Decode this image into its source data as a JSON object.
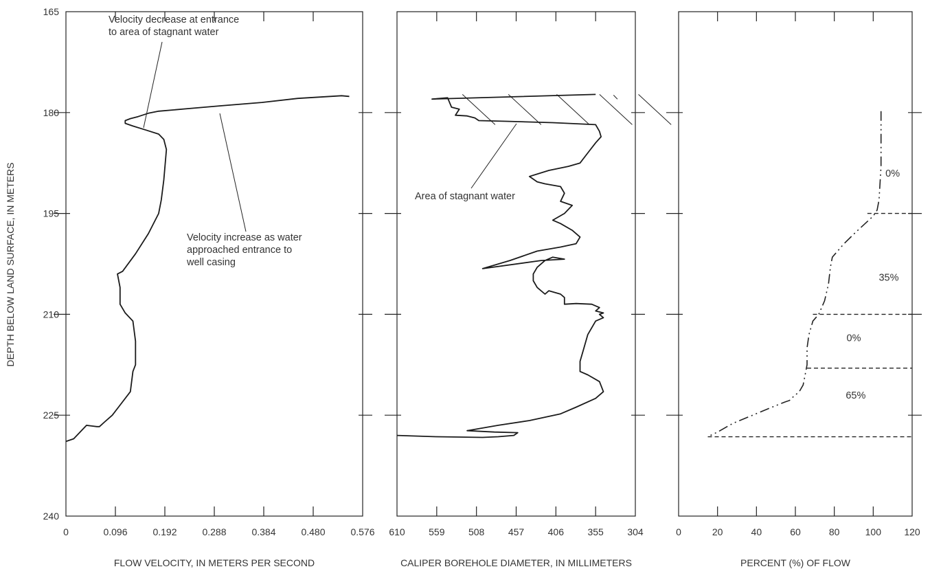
{
  "chart_data": {
    "type": "line",
    "y_axis": {
      "label": "DEPTH BELOW LAND SURFACE, IN METERS",
      "ylim": [
        165,
        240
      ],
      "inverted": true,
      "tick_labels": [
        "165",
        "180",
        "195",
        "210",
        "225",
        "240"
      ],
      "tick_values": [
        165,
        180,
        195,
        210,
        225,
        240
      ]
    },
    "panels": [
      {
        "id": "velocity",
        "xlabel": "FLOW VELOCITY, IN METERS PER SECOND",
        "xlim": [
          0,
          0.576
        ],
        "tick_values": [
          0,
          0.096,
          0.192,
          0.288,
          0.384,
          0.48,
          0.576
        ],
        "tick_labels": [
          "0",
          "0.096",
          "0.192",
          "0.288",
          "0.384",
          "0.480",
          "0.576"
        ],
        "series": [
          {
            "x": [
              0.55,
              0.535,
              0.45,
              0.38,
              0.3,
              0.24,
              0.18,
              0.16,
              0.14,
              0.125,
              0.115,
              0.115,
              0.13,
              0.155,
              0.18,
              0.19,
              0.195,
              0.19,
              0.185,
              0.18,
              0.16,
              0.135,
              0.11,
              0.1,
              0.105,
              0.105,
              0.115,
              0.13,
              0.135,
              0.135,
              0.13,
              0.125,
              0.105,
              0.09,
              0.075,
              0.065,
              0.06,
              0.05,
              0.04,
              0.015,
              0.0
            ],
            "y": [
              177.6,
              177.5,
              177.9,
              178.5,
              179.0,
              179.4,
              179.8,
              180.1,
              180.6,
              180.9,
              181.2,
              181.6,
              182.0,
              182.6,
              183.2,
              184.0,
              185.5,
              190.0,
              193.0,
              195.0,
              198.0,
              201.0,
              203.6,
              204.0,
              206.0,
              208.5,
              209.8,
              211.0,
              214.0,
              217.5,
              218.5,
              221.5,
              223.5,
              225.0,
              226.0,
              226.7,
              226.7,
              226.6,
              226.5,
              228.5,
              228.9
            ]
          }
        ],
        "annotations": [
          "Velocity decrease at entrance",
          "to area of stagnant water",
          "Velocity increase as water",
          "approached entrance to",
          "well casing"
        ]
      },
      {
        "id": "caliper",
        "xlabel": "CALIPER BOREHOLE DIAMETER, IN MILLIMETERS",
        "xlim": [
          610,
          304
        ],
        "reversed": true,
        "tick_values": [
          610,
          559,
          508,
          457,
          406,
          355,
          304
        ],
        "tick_labels": [
          "610",
          "559",
          "508",
          "457",
          "406",
          "355",
          "304"
        ],
        "series": [
          {
            "x": [
              355,
              565,
              545,
              540,
              530,
              535,
              520,
              510,
              505,
              470,
              410,
              355,
              350,
              348,
              355,
              365,
              375,
              390,
              415,
              440,
              430,
              420,
              400,
              395,
              400,
              385,
              395,
              410,
              400,
              385,
              375,
              380,
              400,
              430,
              465,
              500,
              425,
              395,
              410,
              420,
              430,
              435,
              435,
              430,
              420,
              415,
              400,
              395,
              395,
              380,
              360,
              350,
              355,
              345,
              350,
              345,
              355,
              365,
              370,
              375,
              375,
              365,
              350,
              345,
              355,
              380,
              400,
              440,
              480,
              520,
              485,
              455,
              460,
              480,
              500,
              560,
              610
            ],
            "y": [
              177.3,
              178.0,
              177.8,
              179.2,
              179.5,
              180.4,
              180.5,
              180.8,
              181.2,
              181.3,
              181.5,
              181.8,
              182.8,
              183.6,
              184.5,
              186.0,
              187.5,
              188.0,
              188.6,
              189.5,
              190.3,
              190.6,
              191.0,
              192.0,
              193.2,
              193.8,
              195.0,
              196.0,
              196.5,
              197.5,
              198.5,
              199.5,
              200.0,
              200.6,
              202.0,
              203.2,
              202.0,
              201.8,
              201.5,
              202.0,
              203.0,
              204.0,
              205.0,
              206.0,
              207.0,
              206.5,
              207.0,
              207.5,
              208.5,
              208.4,
              208.5,
              209.0,
              209.5,
              209.8,
              210.0,
              210.5,
              211.0,
              213.0,
              215.0,
              217.0,
              218.5,
              219.0,
              220.0,
              221.5,
              222.5,
              223.8,
              224.8,
              225.8,
              226.5,
              227.3,
              227.5,
              227.6,
              228.0,
              228.2,
              228.3,
              228.2,
              228.0
            ]
          }
        ],
        "annotations": [
          "Area of stagnant water"
        ]
      },
      {
        "id": "percent",
        "xlabel": "PERCENT (%) OF FLOW",
        "xlim": [
          0,
          120
        ],
        "tick_values": [
          0,
          20,
          40,
          60,
          80,
          100,
          120
        ],
        "tick_labels": [
          "0",
          "20",
          "40",
          "60",
          "80",
          "100",
          "120"
        ],
        "series": [
          {
            "x": [
              104,
              104,
              104,
              104,
              103,
              102,
              100,
              97,
              91,
              85,
              79,
              78,
              77,
              75,
              72,
              69,
              67,
              66,
              66,
              65,
              64,
              62,
              60,
              58,
              57,
              55,
              48,
              38,
              28,
              20,
              15
            ],
            "y": [
              179.8,
              181.5,
              184.0,
              188.0,
              193.0,
              194.5,
              195.4,
              196.2,
              197.8,
              199.5,
              201.5,
              203.0,
              205.5,
              208.0,
              210.0,
              211.0,
              213.0,
              215.0,
              217.5,
              219.0,
              220.5,
              221.5,
              222.0,
              222.5,
              222.8,
              223.0,
              223.8,
              225.0,
              226.2,
              227.5,
              228.2
            ]
          }
        ],
        "boundaries": [
          {
            "x_start": 97,
            "depth": 195.0
          },
          {
            "x_start": 69,
            "depth": 210.0
          },
          {
            "x_start": 66,
            "depth": 218.0
          },
          {
            "x_start": 15,
            "depth": 228.2
          }
        ],
        "zone_labels": [
          {
            "text": "0%",
            "x": 110,
            "y": 189
          },
          {
            "text": "35%",
            "x": 108,
            "y": 204.5
          },
          {
            "text": "0%",
            "x": 90,
            "y": 213.5
          },
          {
            "text": "65%",
            "x": 91,
            "y": 222
          }
        ]
      }
    ]
  }
}
